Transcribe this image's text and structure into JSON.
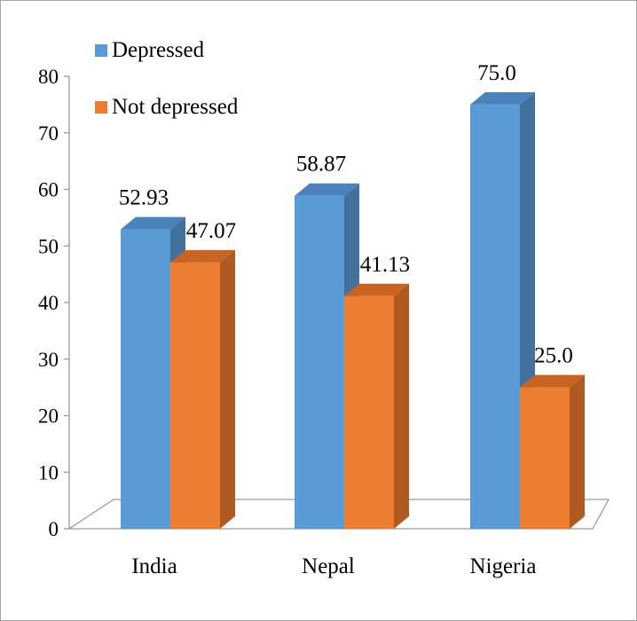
{
  "chart_data": {
    "type": "bar",
    "categories": [
      "India",
      "Nepal",
      "Nigeria"
    ],
    "series": [
      {
        "name": "Depressed",
        "values": [
          52.93,
          58.87,
          75.0
        ],
        "labels": [
          "52.93",
          "58.87",
          "75.0"
        ],
        "color": "#5b9bd5",
        "side_color": "#41719c",
        "top_color": "#4a83bb"
      },
      {
        "name": "Not depressed",
        "values": [
          47.07,
          41.13,
          25.0
        ],
        "labels": [
          "47.07",
          "41.13",
          "25.0"
        ],
        "color": "#ed7d31",
        "side_color": "#ae5a21",
        "top_color": "#c86422"
      }
    ],
    "y_ticks": [
      "0",
      "10",
      "20",
      "30",
      "40",
      "50",
      "60",
      "70",
      "80"
    ],
    "ylim": [
      0,
      80
    ],
    "legend": "top-left",
    "grid": false,
    "style": "3d-column"
  }
}
